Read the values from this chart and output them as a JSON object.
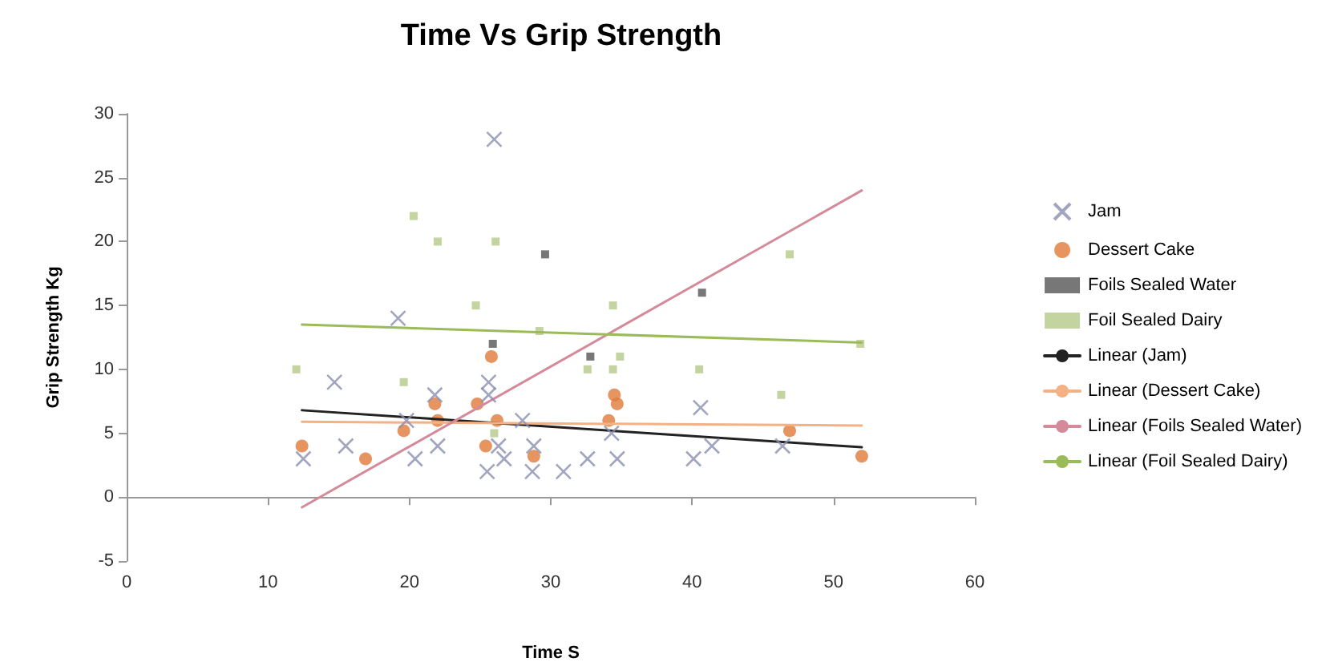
{
  "chart_data": {
    "type": "scatter",
    "title": "Time Vs Grip Strength",
    "xlabel": "Time S",
    "ylabel": "Grip Strength Kg",
    "xlim": [
      0,
      60
    ],
    "xticks": [
      0,
      10,
      20,
      30,
      40,
      50,
      60
    ],
    "ylim": [
      -5,
      30
    ],
    "yticks": [
      -5,
      0,
      5,
      10,
      15,
      20,
      25,
      30
    ],
    "legend": "right",
    "series": [
      {
        "name": "Jam",
        "color": "#8a8fb0",
        "marker": "cross",
        "x": [
          26.0,
          19.2,
          14.7,
          25.6,
          25.6,
          21.8,
          19.8,
          28.0,
          12.5,
          15.5,
          20.4,
          22.0,
          25.5,
          26.3,
          26.7,
          28.8,
          28.7,
          30.9,
          32.6,
          34.7,
          34.3,
          40.6,
          40.1,
          41.4,
          46.4
        ],
        "values": [
          28,
          14,
          9,
          9,
          8,
          8,
          6,
          6,
          3,
          4,
          3,
          4,
          2,
          4,
          3,
          4,
          2,
          2,
          3,
          3,
          5,
          7,
          3,
          4,
          4
        ]
      },
      {
        "name": "Dessert Cake",
        "color": "#e07b39",
        "marker": "circle",
        "x": [
          12.4,
          16.9,
          19.6,
          21.8,
          22.0,
          24.8,
          25.8,
          26.2,
          25.4,
          28.8,
          34.5,
          34.7,
          34.1,
          46.9,
          52.0
        ],
        "values": [
          4,
          3,
          5.2,
          7.3,
          6,
          7.3,
          11,
          6,
          4,
          3.2,
          8,
          7.3,
          6,
          5.2,
          3.2
        ]
      },
      {
        "name": "Foils Sealed Water",
        "color": "#555555",
        "marker": "square",
        "x": [
          25.9,
          29.6,
          32.8,
          40.7
        ],
        "values": [
          12,
          19,
          11,
          16
        ]
      },
      {
        "name": "Foil Sealed Dairy",
        "color": "#b5c98a",
        "marker": "square",
        "x": [
          12.0,
          20.3,
          22.0,
          26.1,
          24.7,
          29.2,
          19.6,
          26.0,
          34.4,
          34.9,
          32.6,
          34.4,
          40.5,
          46.3,
          46.9,
          51.9
        ],
        "values": [
          10,
          22,
          20,
          20,
          15,
          13,
          9,
          5,
          15,
          11,
          10,
          10,
          10,
          8,
          19,
          12
        ]
      },
      {
        "name": "Linear (Jam)",
        "type": "line",
        "color": "#222222",
        "x": [
          12.4,
          52
        ],
        "values": [
          6.8,
          3.9
        ]
      },
      {
        "name": "Linear (Dessert Cake)",
        "type": "line",
        "color": "#f4b183",
        "x": [
          12.4,
          52
        ],
        "values": [
          5.9,
          5.6
        ]
      },
      {
        "name": "Linear (Foils Sealed Water)",
        "type": "line",
        "color": "#d48a9a",
        "x": [
          12.4,
          52
        ],
        "values": [
          -0.8,
          24.0
        ]
      },
      {
        "name": "Linear (Foil Sealed Dairy)",
        "type": "line",
        "color": "#9bbb59",
        "x": [
          12.4,
          52
        ],
        "values": [
          13.5,
          12.1
        ]
      }
    ]
  }
}
